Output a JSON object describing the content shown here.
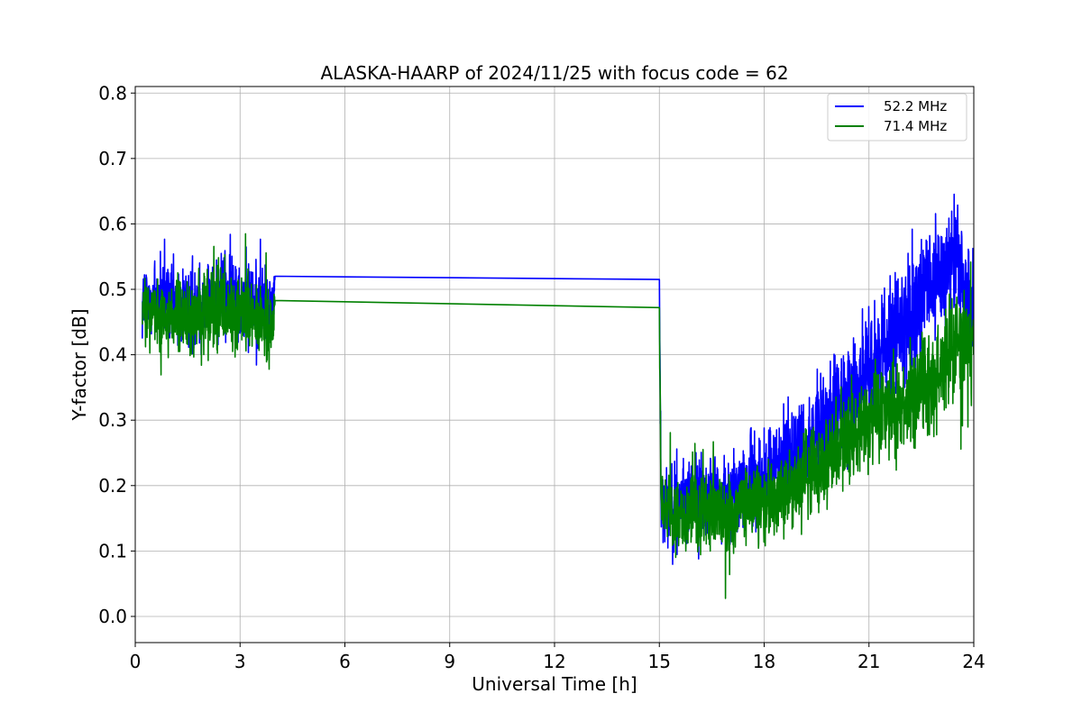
{
  "chart_data": {
    "type": "line",
    "title": "ALASKA-HAARP of 2024/11/25 with focus code = 62",
    "xlabel": "Universal Time [h]",
    "ylabel": "Y-factor [dB]",
    "xlim": [
      0,
      24
    ],
    "ylim": [
      -0.04,
      0.81
    ],
    "xticks": [
      "0",
      "3",
      "6",
      "9",
      "12",
      "15",
      "18",
      "21",
      "24"
    ],
    "yticks": [
      "0.0",
      "0.1",
      "0.2",
      "0.3",
      "0.4",
      "0.5",
      "0.6",
      "0.7",
      "0.8"
    ],
    "grid": true,
    "legend_position": "top-right",
    "series": [
      {
        "name": "52.2 MHz",
        "color": "#0000ff",
        "x": [
          0.2,
          0.5,
          1.0,
          1.5,
          2.0,
          2.5,
          3.0,
          3.5,
          3.95,
          4.0,
          15.0,
          15.05,
          15.5,
          16.0,
          16.5,
          17.0,
          17.5,
          18.0,
          18.5,
          19.0,
          19.5,
          20.0,
          20.5,
          21.0,
          21.5,
          22.0,
          22.5,
          23.0,
          23.5,
          24.0
        ],
        "y": [
          0.48,
          0.49,
          0.48,
          0.47,
          0.48,
          0.5,
          0.49,
          0.48,
          0.47,
          0.52,
          0.515,
          0.18,
          0.17,
          0.18,
          0.19,
          0.18,
          0.2,
          0.21,
          0.24,
          0.26,
          0.28,
          0.31,
          0.34,
          0.38,
          0.42,
          0.45,
          0.48,
          0.52,
          0.55,
          0.45
        ],
        "noise": [
          0.09,
          0.09,
          0.09,
          0.1,
          0.1,
          0.1,
          0.1,
          0.09,
          0.09,
          0,
          0,
          0.09,
          0.09,
          0.09,
          0.09,
          0.09,
          0.1,
          0.1,
          0.1,
          0.11,
          0.11,
          0.12,
          0.12,
          0.12,
          0.12,
          0.13,
          0.13,
          0.13,
          0.13,
          0.13
        ]
      },
      {
        "name": "71.4 MHz",
        "color": "#008000",
        "x": [
          0.2,
          0.5,
          1.0,
          1.5,
          2.0,
          2.5,
          3.0,
          3.5,
          3.95,
          4.0,
          15.0,
          15.05,
          15.5,
          16.0,
          16.5,
          17.0,
          17.5,
          18.0,
          18.5,
          19.0,
          19.5,
          20.0,
          20.5,
          21.0,
          21.5,
          22.0,
          22.5,
          23.0,
          23.5,
          24.0
        ],
        "y": [
          0.46,
          0.47,
          0.46,
          0.45,
          0.46,
          0.47,
          0.46,
          0.45,
          0.44,
          0.483,
          0.472,
          0.16,
          0.15,
          0.16,
          0.16,
          0.15,
          0.17,
          0.17,
          0.19,
          0.21,
          0.22,
          0.25,
          0.27,
          0.3,
          0.32,
          0.33,
          0.35,
          0.37,
          0.42,
          0.4
        ],
        "noise": [
          0.08,
          0.08,
          0.08,
          0.08,
          0.09,
          0.09,
          0.09,
          0.08,
          0.08,
          0,
          0,
          0.08,
          0.08,
          0.08,
          0.08,
          0.08,
          0.08,
          0.09,
          0.09,
          0.09,
          0.1,
          0.1,
          0.1,
          0.1,
          0.1,
          0.1,
          0.11,
          0.11,
          0.12,
          0.12
        ]
      }
    ]
  }
}
